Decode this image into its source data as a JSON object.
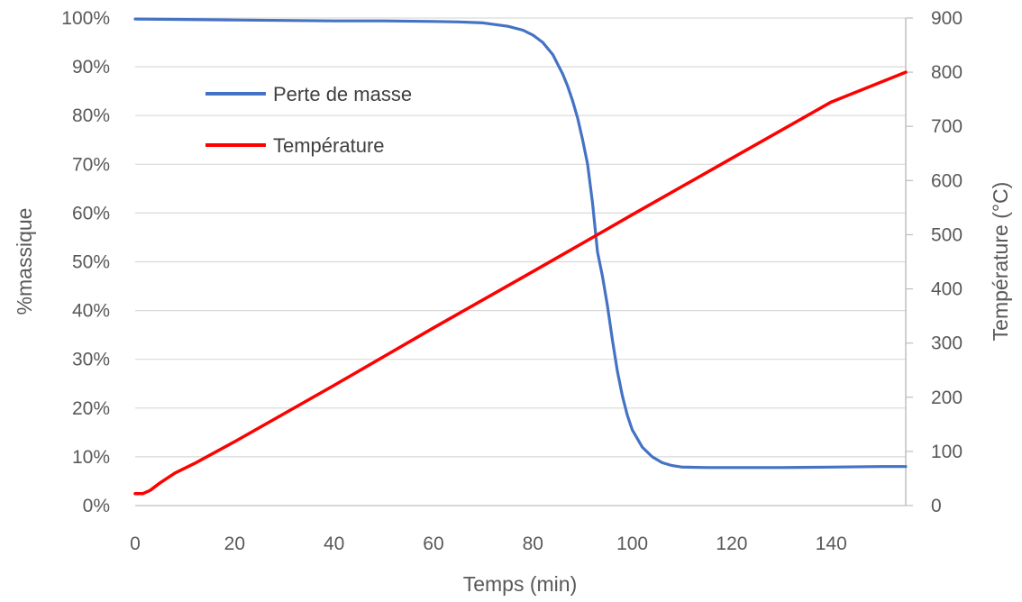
{
  "chart_data": {
    "type": "line",
    "title": "",
    "xlabel": "Temps (min)",
    "ylabel_left": "%massique",
    "ylabel_right": "Température (°C)",
    "xlim": [
      0,
      155
    ],
    "ylim_left": [
      0,
      100
    ],
    "ylim_right": [
      0,
      900
    ],
    "x_ticks": [
      "0",
      "20",
      "40",
      "60",
      "80",
      "100",
      "120",
      "140"
    ],
    "y_left_ticks": [
      "0%",
      "10%",
      "20%",
      "30%",
      "40%",
      "50%",
      "60%",
      "70%",
      "80%",
      "90%",
      "100%"
    ],
    "y_right_ticks": [
      "0",
      "100",
      "200",
      "300",
      "400",
      "500",
      "600",
      "700",
      "800",
      "900"
    ],
    "grid": "horizontal",
    "legend": "top-left",
    "series": [
      {
        "name": "Perte de masse",
        "axis": "left",
        "color": "#4472C4",
        "x": [
          0,
          10,
          20,
          30,
          40,
          50,
          60,
          65,
          70,
          75,
          78,
          80,
          82,
          84,
          86,
          87,
          88,
          89,
          90,
          91,
          92,
          93,
          94,
          95,
          96,
          97,
          98,
          99,
          100,
          102,
          104,
          106,
          108,
          110,
          115,
          120,
          130,
          140,
          150,
          155
        ],
        "values": [
          99.8,
          99.7,
          99.6,
          99.5,
          99.4,
          99.4,
          99.3,
          99.2,
          99.0,
          98.3,
          97.5,
          96.5,
          95.0,
          92.5,
          88.5,
          86.0,
          83.0,
          79.5,
          75.0,
          70.0,
          62.0,
          52.0,
          47.0,
          41.0,
          34.0,
          27.5,
          22.5,
          18.5,
          15.5,
          12.0,
          10.0,
          8.8,
          8.2,
          7.9,
          7.8,
          7.8,
          7.8,
          7.9,
          8.0,
          8.0
        ]
      },
      {
        "name": "Température",
        "axis": "right",
        "color": "#FF0000",
        "x": [
          0,
          1.5,
          3,
          5,
          8,
          12,
          20,
          40,
          60,
          80,
          93,
          100,
          120,
          140,
          155
        ],
        "values": [
          22,
          22,
          28,
          42,
          60,
          78,
          118,
          222,
          328,
          432,
          500,
          537,
          641,
          745,
          800
        ]
      }
    ]
  }
}
